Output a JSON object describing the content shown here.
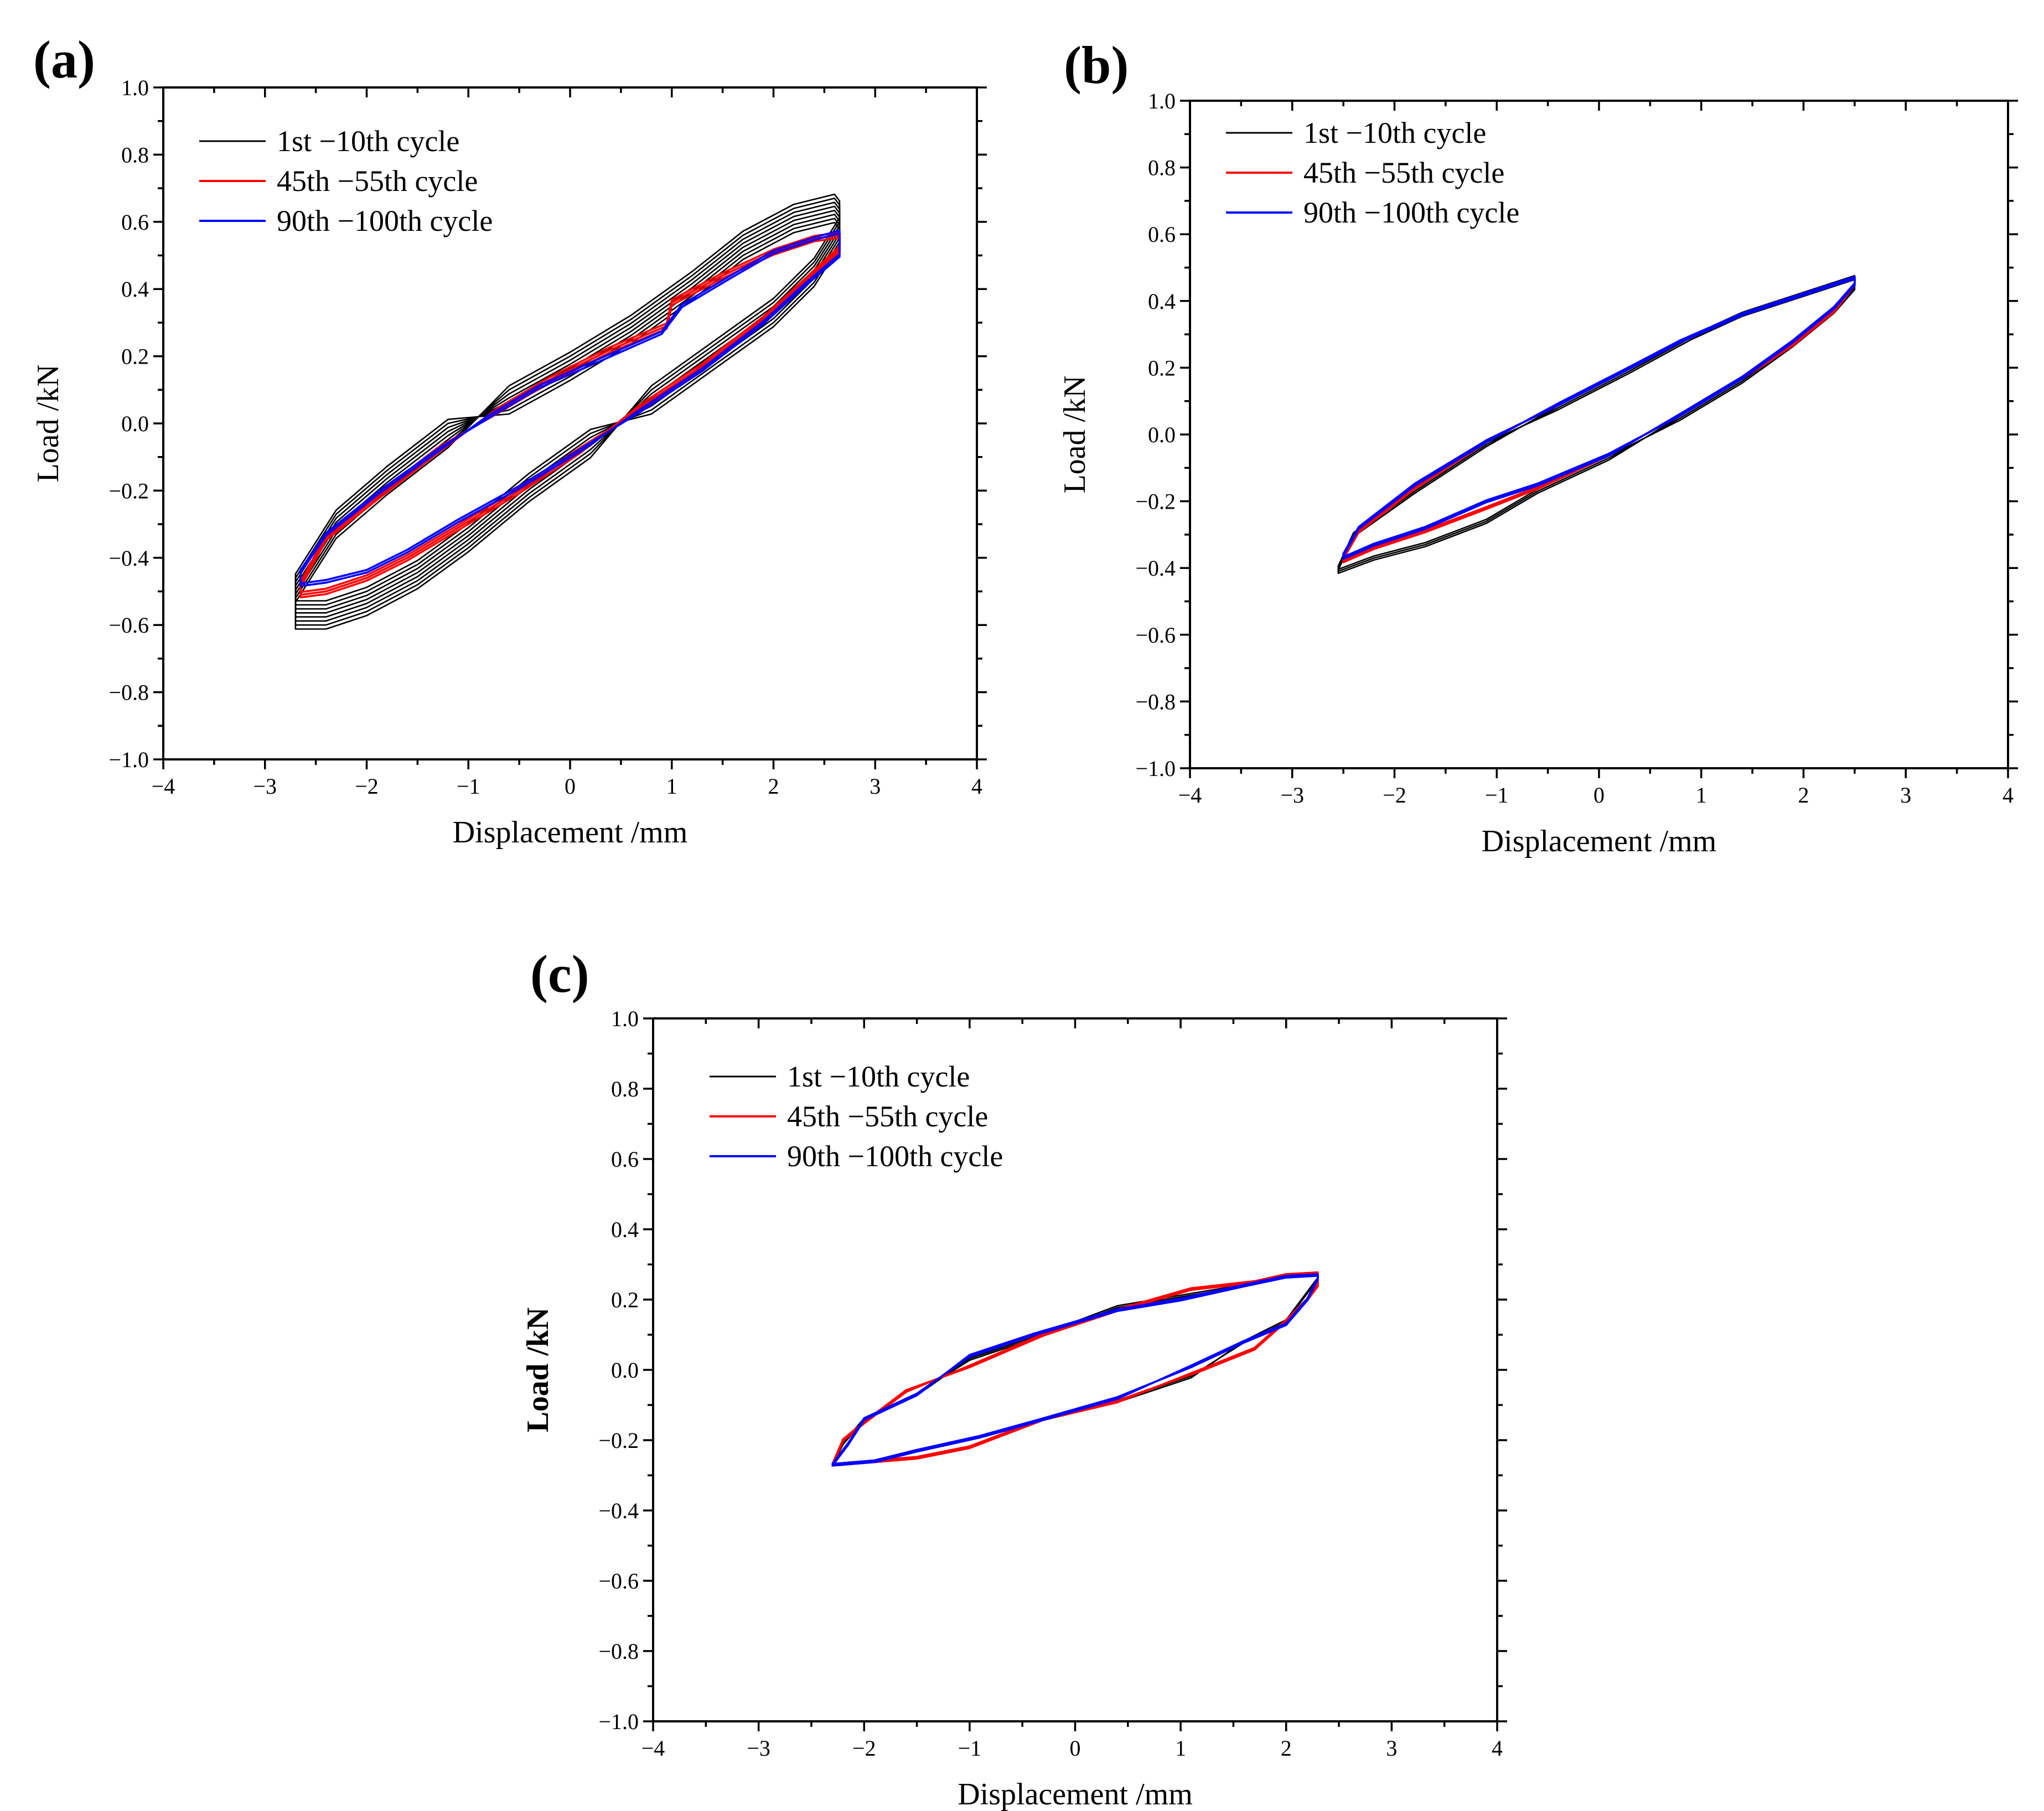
{
  "figure": {
    "description_panels": [
      "a",
      "b",
      "c"
    ]
  },
  "colors": {
    "first": "#000000",
    "middle": "#ff0000",
    "last": "#0000ff"
  },
  "chart_data": [
    {
      "panel": "(a)",
      "type": "line",
      "xlabel": "Displacement /mm",
      "ylabel": "Load /kN",
      "ylabel_bold": false,
      "xlim": [
        -4,
        4
      ],
      "ylim": [
        -1.0,
        1.0
      ],
      "xticks": [
        "−4",
        "−3",
        "−2",
        "−1",
        "0",
        "1",
        "2",
        "3",
        "4"
      ],
      "yticks": [
        "1.0",
        "0.8",
        "0.6",
        "0.4",
        "0.2",
        "0.0",
        "−0.2",
        "−0.4",
        "−0.6",
        "−0.8",
        "−1.0"
      ],
      "legend_position": "top-left",
      "series": [
        {
          "name": "1st −10th cycle",
          "color": "#000000",
          "copies": 8,
          "spread": 0.012,
          "upper": [
            [
              -2.7,
              -0.49
            ],
            [
              -2.3,
              -0.3
            ],
            [
              -1.8,
              -0.17
            ],
            [
              -1.2,
              -0.03
            ],
            [
              -0.6,
              0.07
            ],
            [
              0,
              0.17
            ],
            [
              0.6,
              0.28
            ],
            [
              1.2,
              0.41
            ],
            [
              1.7,
              0.53
            ],
            [
              2.2,
              0.61
            ],
            [
              2.6,
              0.64
            ],
            [
              2.65,
              0.62
            ]
          ],
          "lower": [
            [
              2.65,
              0.57
            ],
            [
              2.4,
              0.45
            ],
            [
              2.0,
              0.33
            ],
            [
              1.4,
              0.2
            ],
            [
              0.8,
              0.07
            ],
            [
              0.2,
              -0.06
            ],
            [
              -0.4,
              -0.19
            ],
            [
              -1.0,
              -0.34
            ],
            [
              -1.5,
              -0.45
            ],
            [
              -2.0,
              -0.53
            ],
            [
              -2.4,
              -0.57
            ],
            [
              -2.7,
              -0.57
            ]
          ]
        },
        {
          "name": "45th −55th cycle",
          "color": "#ff0000",
          "copies": 3,
          "spread": 0.008,
          "upper": [
            [
              -2.65,
              -0.48
            ],
            [
              -2.4,
              -0.34
            ],
            [
              -1.9,
              -0.22
            ],
            [
              -1.3,
              -0.08
            ],
            [
              -0.7,
              0.04
            ],
            [
              -0.2,
              0.13
            ],
            [
              0.4,
              0.22
            ],
            [
              0.95,
              0.29
            ],
            [
              1.0,
              0.36
            ],
            [
              1.5,
              0.44
            ],
            [
              2.0,
              0.51
            ],
            [
              2.4,
              0.55
            ],
            [
              2.65,
              0.56
            ]
          ],
          "lower": [
            [
              2.65,
              0.52
            ],
            [
              2.3,
              0.42
            ],
            [
              1.9,
              0.31
            ],
            [
              1.3,
              0.17
            ],
            [
              0.7,
              0.05
            ],
            [
              0.1,
              -0.08
            ],
            [
              -0.5,
              -0.2
            ],
            [
              -1.1,
              -0.31
            ],
            [
              -1.6,
              -0.4
            ],
            [
              -2.0,
              -0.46
            ],
            [
              -2.4,
              -0.5
            ],
            [
              -2.65,
              -0.51
            ]
          ]
        },
        {
          "name": "90th −100th cycle",
          "color": "#0000ff",
          "copies": 2,
          "spread": 0.008,
          "upper": [
            [
              -2.65,
              -0.44
            ],
            [
              -2.4,
              -0.33
            ],
            [
              -1.9,
              -0.21
            ],
            [
              -1.3,
              -0.08
            ],
            [
              -0.8,
              0.02
            ],
            [
              -0.3,
              0.11
            ],
            [
              0.3,
              0.19
            ],
            [
              0.9,
              0.27
            ],
            [
              1.1,
              0.35
            ],
            [
              1.6,
              0.44
            ],
            [
              2.0,
              0.51
            ],
            [
              2.4,
              0.55
            ],
            [
              2.65,
              0.57
            ]
          ],
          "lower": [
            [
              2.65,
              0.5
            ],
            [
              2.3,
              0.41
            ],
            [
              1.9,
              0.3
            ],
            [
              1.3,
              0.16
            ],
            [
              0.7,
              0.04
            ],
            [
              0.1,
              -0.08
            ],
            [
              -0.5,
              -0.19
            ],
            [
              -1.1,
              -0.29
            ],
            [
              -1.6,
              -0.38
            ],
            [
              -2.0,
              -0.44
            ],
            [
              -2.4,
              -0.47
            ],
            [
              -2.65,
              -0.48
            ]
          ]
        }
      ]
    },
    {
      "panel": "(b)",
      "type": "line",
      "xlabel": "Displacement /mm",
      "ylabel": "Load /kN",
      "ylabel_bold": false,
      "xlim": [
        -4,
        4
      ],
      "ylim": [
        -1.0,
        1.0
      ],
      "xticks": [
        "−4",
        "−3",
        "−2",
        "−1",
        "0",
        "1",
        "2",
        "3",
        "4"
      ],
      "yticks": [
        "1.0",
        "0.8",
        "0.6",
        "0.4",
        "0.2",
        "0.0",
        "−0.2",
        "−0.4",
        "−0.6",
        "−0.8",
        "−1.0"
      ],
      "legend_position": "top-left",
      "series": [
        {
          "name": "1st −10th cycle",
          "color": "#000000",
          "copies": 3,
          "spread": 0.006,
          "upper": [
            [
              -2.55,
              -0.4
            ],
            [
              -2.4,
              -0.3
            ],
            [
              -1.8,
              -0.17
            ],
            [
              -1.1,
              -0.03
            ],
            [
              -0.4,
              0.08
            ],
            [
              0.3,
              0.19
            ],
            [
              0.9,
              0.29
            ],
            [
              1.4,
              0.36
            ],
            [
              2.0,
              0.42
            ],
            [
              2.5,
              0.47
            ]
          ],
          "lower": [
            [
              2.5,
              0.44
            ],
            [
              2.3,
              0.37
            ],
            [
              1.9,
              0.27
            ],
            [
              1.4,
              0.16
            ],
            [
              0.8,
              0.05
            ],
            [
              0.1,
              -0.07
            ],
            [
              -0.6,
              -0.17
            ],
            [
              -1.1,
              -0.26
            ],
            [
              -1.7,
              -0.33
            ],
            [
              -2.2,
              -0.37
            ],
            [
              -2.55,
              -0.41
            ]
          ]
        },
        {
          "name": "45th −55th cycle",
          "color": "#ff0000",
          "copies": 2,
          "spread": 0.006,
          "upper": [
            [
              -2.5,
              -0.37
            ],
            [
              -2.35,
              -0.29
            ],
            [
              -1.8,
              -0.16
            ],
            [
              -1.1,
              -0.02
            ],
            [
              -0.4,
              0.09
            ],
            [
              0.3,
              0.2
            ],
            [
              0.8,
              0.28
            ],
            [
              1.4,
              0.36
            ],
            [
              2.0,
              0.42
            ],
            [
              2.5,
              0.47
            ]
          ],
          "lower": [
            [
              2.5,
              0.45
            ],
            [
              2.3,
              0.37
            ],
            [
              1.9,
              0.27
            ],
            [
              1.4,
              0.17
            ],
            [
              0.8,
              0.06
            ],
            [
              0.1,
              -0.06
            ],
            [
              -0.6,
              -0.16
            ],
            [
              -1.1,
              -0.22
            ],
            [
              -1.7,
              -0.29
            ],
            [
              -2.2,
              -0.34
            ],
            [
              -2.5,
              -0.38
            ]
          ]
        },
        {
          "name": "90th −100th cycle",
          "color": "#0000ff",
          "copies": 2,
          "spread": 0.006,
          "upper": [
            [
              -2.5,
              -0.36
            ],
            [
              -2.35,
              -0.28
            ],
            [
              -1.8,
              -0.15
            ],
            [
              -1.1,
              -0.02
            ],
            [
              -0.4,
              0.09
            ],
            [
              0.3,
              0.2
            ],
            [
              0.8,
              0.28
            ],
            [
              1.4,
              0.36
            ],
            [
              2.0,
              0.42
            ],
            [
              2.5,
              0.47
            ]
          ],
          "lower": [
            [
              2.5,
              0.45
            ],
            [
              2.3,
              0.38
            ],
            [
              1.9,
              0.28
            ],
            [
              1.4,
              0.17
            ],
            [
              0.8,
              0.06
            ],
            [
              0.1,
              -0.06
            ],
            [
              -0.6,
              -0.15
            ],
            [
              -1.1,
              -0.2
            ],
            [
              -1.7,
              -0.28
            ],
            [
              -2.2,
              -0.33
            ],
            [
              -2.5,
              -0.37
            ]
          ]
        }
      ]
    },
    {
      "panel": "(c)",
      "type": "line",
      "xlabel": "Displacement /mm",
      "ylabel": "Load /kN",
      "ylabel_bold": true,
      "xlim": [
        -4,
        4
      ],
      "ylim": [
        -1.0,
        1.0
      ],
      "xticks": [
        "−4",
        "−3",
        "−2",
        "−1",
        "0",
        "1",
        "2",
        "3",
        "4"
      ],
      "yticks": [
        "1.0",
        "0.8",
        "0.6",
        "0.4",
        "0.2",
        "0.0",
        "−0.2",
        "−0.4",
        "−0.6",
        "−0.8",
        "−1.0"
      ],
      "legend_position": "top-left",
      "series": [
        {
          "name": "1st −10th cycle",
          "color": "#000000",
          "copies": 2,
          "spread": 0.005,
          "upper": [
            [
              -2.3,
              -0.27
            ],
            [
              -2.2,
              -0.21
            ],
            [
              -2.0,
              -0.14
            ],
            [
              -1.5,
              -0.07
            ],
            [
              -1.0,
              0.03
            ],
            [
              -0.4,
              0.09
            ],
            [
              0.4,
              0.18
            ],
            [
              1.0,
              0.21
            ],
            [
              1.6,
              0.24
            ],
            [
              2.0,
              0.265
            ],
            [
              2.3,
              0.27
            ]
          ],
          "lower": [
            [
              2.3,
              0.26
            ],
            [
              2.2,
              0.22
            ],
            [
              2.0,
              0.14
            ],
            [
              1.6,
              0.08
            ],
            [
              1.1,
              -0.02
            ],
            [
              0.4,
              -0.09
            ],
            [
              -0.3,
              -0.14
            ],
            [
              -0.9,
              -0.19
            ],
            [
              -1.5,
              -0.23
            ],
            [
              -1.9,
              -0.26
            ],
            [
              -2.3,
              -0.27
            ]
          ]
        },
        {
          "name": "45th −55th cycle",
          "color": "#ff0000",
          "copies": 2,
          "spread": 0.005,
          "upper": [
            [
              -2.3,
              -0.27
            ],
            [
              -2.2,
              -0.2
            ],
            [
              -2.0,
              -0.15
            ],
            [
              -1.6,
              -0.06
            ],
            [
              -1.0,
              0.01
            ],
            [
              -0.3,
              0.1
            ],
            [
              0.4,
              0.17
            ],
            [
              1.1,
              0.23
            ],
            [
              1.7,
              0.25
            ],
            [
              2.0,
              0.27
            ],
            [
              2.3,
              0.275
            ]
          ],
          "lower": [
            [
              2.3,
              0.24
            ],
            [
              2.2,
              0.2
            ],
            [
              2.0,
              0.14
            ],
            [
              1.7,
              0.06
            ],
            [
              1.2,
              0.0
            ],
            [
              0.4,
              -0.09
            ],
            [
              -0.3,
              -0.14
            ],
            [
              -1.0,
              -0.22
            ],
            [
              -1.5,
              -0.25
            ],
            [
              -1.9,
              -0.26
            ],
            [
              -2.3,
              -0.27
            ]
          ]
        },
        {
          "name": "90th −100th cycle",
          "color": "#0000ff",
          "copies": 2,
          "spread": 0.005,
          "upper": [
            [
              -2.3,
              -0.27
            ],
            [
              -2.15,
              -0.21
            ],
            [
              -2.0,
              -0.14
            ],
            [
              -1.5,
              -0.07
            ],
            [
              -1.0,
              0.04
            ],
            [
              -0.4,
              0.1
            ],
            [
              0.4,
              0.17
            ],
            [
              1.0,
              0.2
            ],
            [
              1.6,
              0.24
            ],
            [
              2.0,
              0.265
            ],
            [
              2.3,
              0.27
            ]
          ],
          "lower": [
            [
              2.3,
              0.26
            ],
            [
              2.2,
              0.2
            ],
            [
              2.0,
              0.13
            ],
            [
              1.6,
              0.08
            ],
            [
              1.1,
              0.01
            ],
            [
              0.4,
              -0.08
            ],
            [
              -0.3,
              -0.14
            ],
            [
              -0.9,
              -0.19
            ],
            [
              -1.5,
              -0.23
            ],
            [
              -1.9,
              -0.26
            ],
            [
              -2.3,
              -0.27
            ]
          ]
        }
      ]
    }
  ]
}
